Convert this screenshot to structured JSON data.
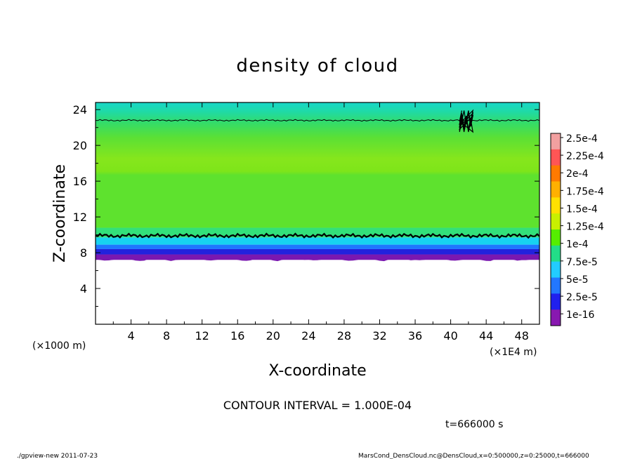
{
  "chart_data": {
    "type": "heatmap",
    "title": "density of cloud",
    "xlabel": "X-coordinate",
    "ylabel": "Z-coordinate",
    "x_unit_left": "(×1000 m)",
    "x_unit_right": "(×1E4 m)",
    "xlim": [
      0,
      50
    ],
    "ylim": [
      0,
      24.8
    ],
    "xticks": [
      "4",
      "8",
      "12",
      "16",
      "20",
      "24",
      "28",
      "32",
      "36",
      "40",
      "44",
      "48"
    ],
    "yticks": [
      "4",
      "8",
      "12",
      "16",
      "20",
      "24"
    ],
    "colorbar": {
      "labels": [
        "2.5e-4",
        "2.25e-4",
        "2e-4",
        "1.75e-4",
        "1.5e-4",
        "1.25e-4",
        "1e-4",
        "7.5e-5",
        "5e-5",
        "2.5e-5",
        "1e-16"
      ],
      "colors": [
        "#f2a0a0",
        "#ff5555",
        "#ff7a00",
        "#ffb000",
        "#ffe000",
        "#c8f000",
        "#55ee00",
        "#22dd88",
        "#22ccff",
        "#2277ff",
        "#2020ee",
        "#8818b0"
      ]
    },
    "bands": [
      {
        "z_from": 0,
        "z_to": 7.2,
        "level": "none",
        "color": "#ffffff"
      },
      {
        "z_from": 7.2,
        "z_to": 7.8,
        "level": "1e-16",
        "color": "#7a18b0"
      },
      {
        "z_from": 7.8,
        "z_to": 8.4,
        "level": "2.5e-5",
        "color": "#2222dd"
      },
      {
        "z_from": 8.4,
        "z_to": 8.9,
        "level": "5e-5",
        "color": "#1f77ff"
      },
      {
        "z_from": 8.9,
        "z_to": 9.7,
        "level": "7.5e-5",
        "color": "#17d3f0"
      },
      {
        "z_from": 9.7,
        "z_to": 10.8,
        "level": "1e-4",
        "color": "#33e07a"
      },
      {
        "z_from": 10.8,
        "z_to": 18.0,
        "level": "1.25e-4",
        "color": "#7ee51a"
      },
      {
        "z_from": 18.0,
        "z_to": 21.0,
        "level": "1e-4",
        "color": "#3ddc60"
      },
      {
        "z_from": 21.0,
        "z_to": 24.8,
        "level": "7.5e-5",
        "color": "#19d7c0"
      }
    ],
    "contour_lines_z": [
      9.9,
      22.8
    ]
  },
  "contour_interval": "CONTOUR INTERVAL = 1.000E-04",
  "time_label": "t=666000 s",
  "footer_left": "./gpview-new   2011-07-23",
  "footer_right": "MarsCond_DensCloud.nc@DensCloud,x=0:500000,z=0:25000,t=666000"
}
